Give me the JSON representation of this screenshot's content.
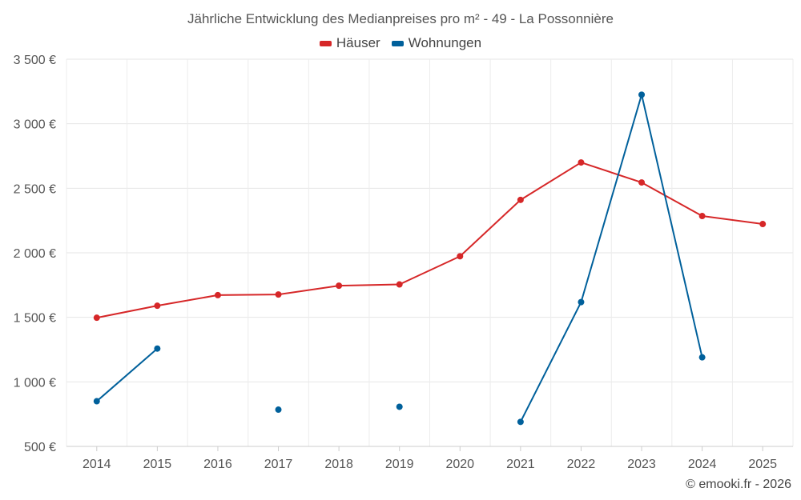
{
  "chart_data": {
    "type": "line",
    "title": "Jährliche Entwicklung des Medianpreises pro m² - 49 - La Possonnière",
    "x": [
      "2014",
      "2015",
      "2016",
      "2017",
      "2018",
      "2019",
      "2020",
      "2021",
      "2022",
      "2023",
      "2024",
      "2025"
    ],
    "series": [
      {
        "name": "Häuser",
        "color": "#d62728",
        "values": [
          1497,
          1590,
          1672,
          1677,
          1745,
          1755,
          1973,
          2410,
          2700,
          2545,
          2285,
          2223
        ]
      },
      {
        "name": "Wohnungen",
        "color": "#00609b",
        "values": [
          850,
          1258,
          null,
          785,
          null,
          807,
          null,
          690,
          1618,
          3225,
          1190,
          null
        ]
      }
    ],
    "y_ticks": [
      500,
      1000,
      1500,
      2000,
      2500,
      3000,
      3500
    ],
    "y_tick_labels": [
      "500 €",
      "1 000 €",
      "1 500 €",
      "2 000 €",
      "2 500 €",
      "3 000 €",
      "3 500 €"
    ],
    "ylim": [
      500,
      3500
    ],
    "grid": true,
    "legend_position": "top-center"
  },
  "credit": "© emooki.fr - 2026"
}
